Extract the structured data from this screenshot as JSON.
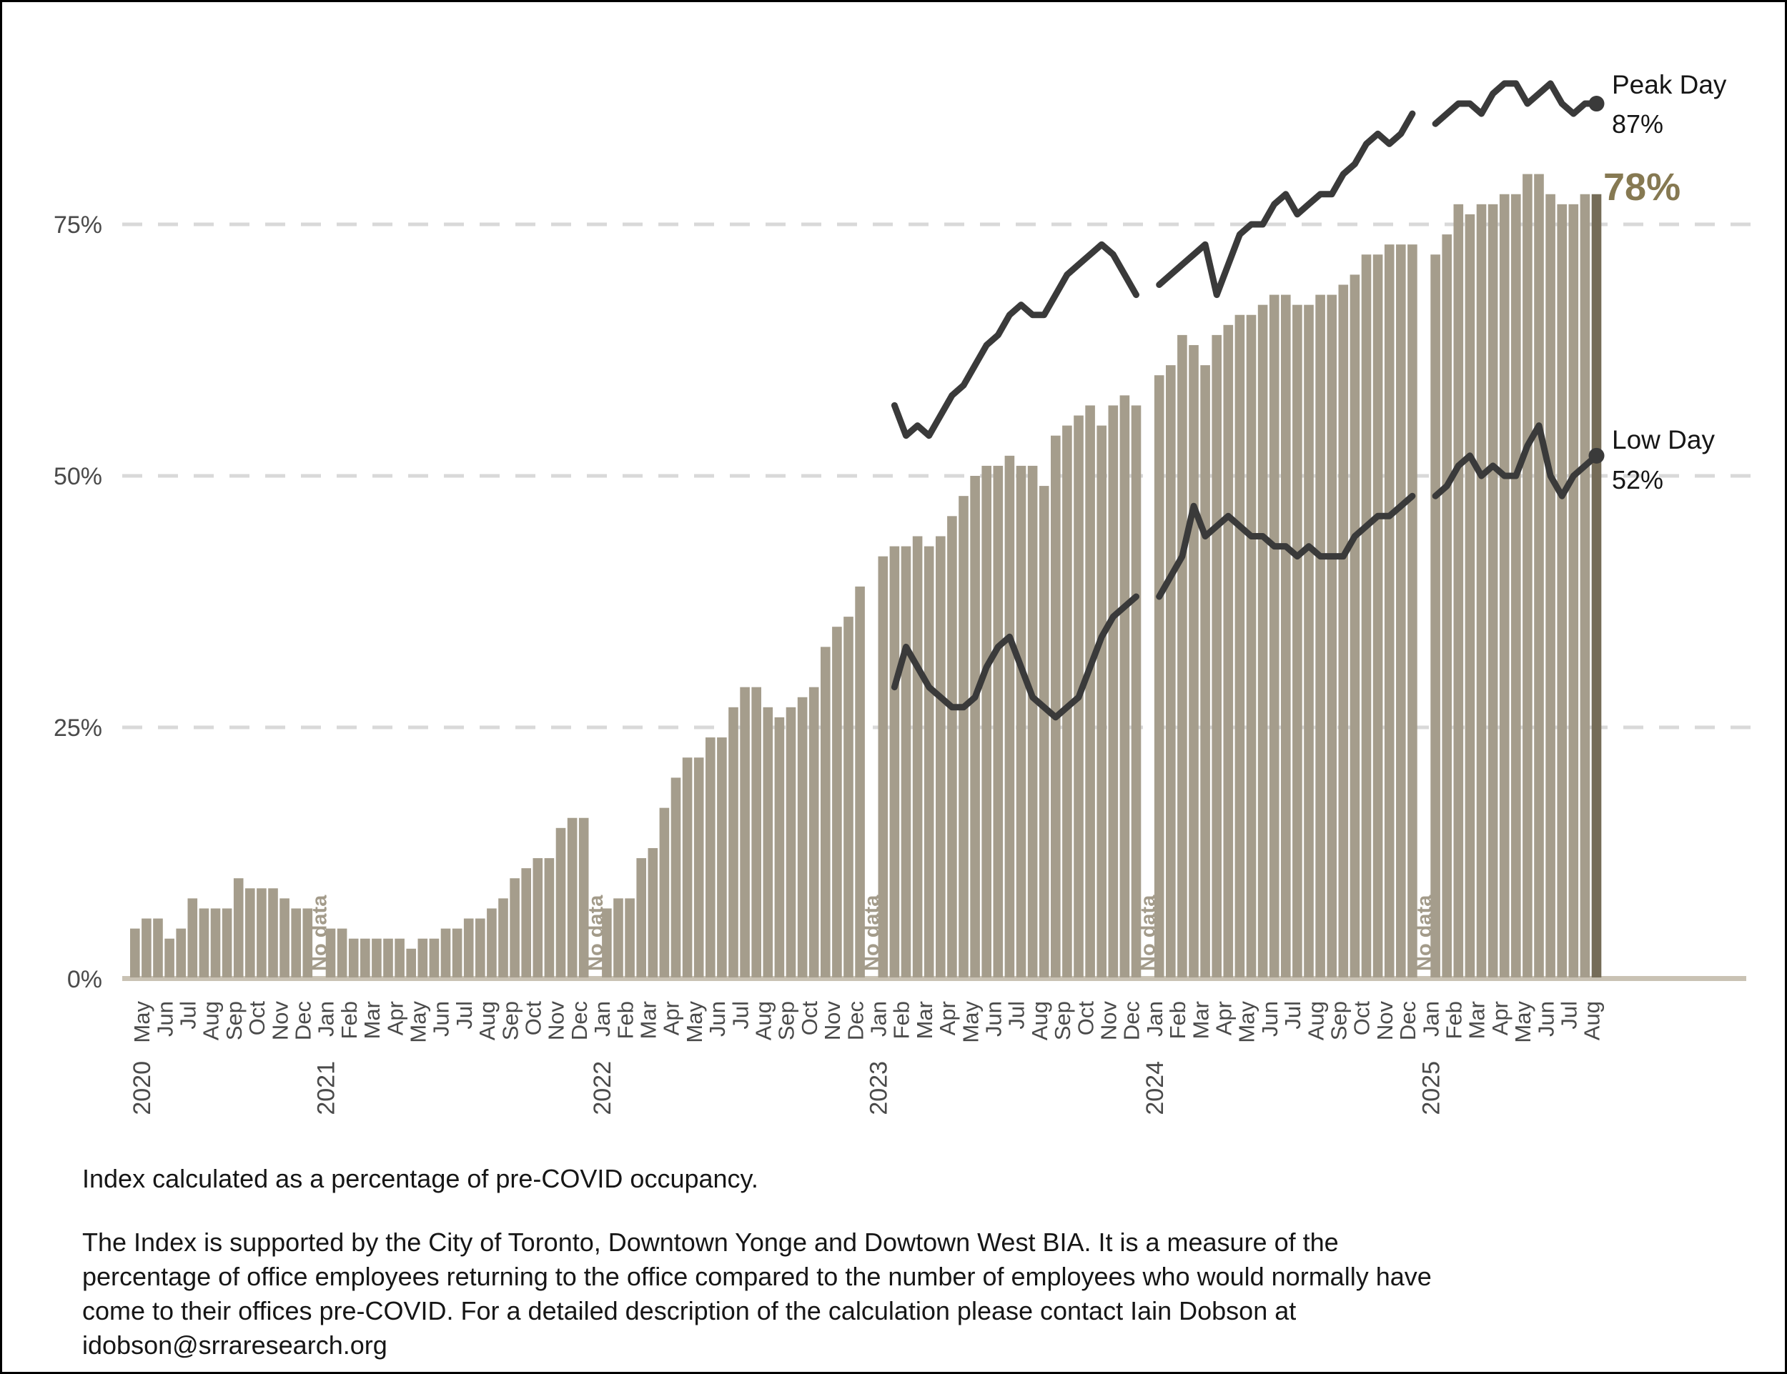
{
  "colors": {
    "bar": "#a59d8c",
    "bar_final": "#756c58",
    "line": "#3a3a3a",
    "grid": "#d9d9d9",
    "axis_text": "#4a4a4a",
    "no_data_text": "#a39b8a",
    "baseline": "#c9c2b4",
    "accent": "#867952",
    "background": "#ffffff"
  },
  "y_axis": {
    "ticks": [
      {
        "label": "0%",
        "value": 0
      },
      {
        "label": "25%",
        "value": 25
      },
      {
        "label": "50%",
        "value": 50
      },
      {
        "label": "75%",
        "value": 75
      }
    ]
  },
  "x_axis": {
    "months": [
      "May",
      "Jun",
      "Jul",
      "Aug",
      "Sep",
      "Oct",
      "Nov",
      "Dec",
      "Jan",
      "Feb",
      "Mar",
      "Apr",
      "May",
      "Jun",
      "Jul",
      "Aug",
      "Sep",
      "Oct",
      "Nov",
      "Dec",
      "Jan",
      "Feb",
      "Mar",
      "Apr",
      "May",
      "Jun",
      "Jul",
      "Aug",
      "Sep",
      "Oct",
      "Nov",
      "Dec",
      "Jan",
      "Feb",
      "Mar",
      "Apr",
      "May",
      "Jun",
      "Jul",
      "Aug",
      "Sep",
      "Oct",
      "Nov",
      "Dec",
      "Jan",
      "Feb",
      "Mar",
      "Apr",
      "May",
      "Jun",
      "Jul",
      "Aug",
      "Sep",
      "Oct",
      "Nov",
      "Dec",
      "Jan",
      "Feb",
      "Mar",
      "Apr",
      "May",
      "Jun",
      "Jul",
      "Aug"
    ],
    "years": [
      {
        "label": "2020",
        "month_index": 0
      },
      {
        "label": "2021",
        "month_index": 8
      },
      {
        "label": "2022",
        "month_index": 20
      },
      {
        "label": "2023",
        "month_index": 32
      },
      {
        "label": "2024",
        "month_index": 44
      },
      {
        "label": "2025",
        "month_index": 56
      }
    ]
  },
  "no_data": {
    "label": "No data",
    "slots": [
      16,
      40,
      64,
      88,
      112
    ]
  },
  "chart_data": {
    "type": "bar+line",
    "description": "Office occupancy index as percentage of pre-COVID occupancy, semi-monthly, May 2020 - Aug 2025",
    "ylim": [
      0,
      100
    ],
    "grid": "dashed horizontal at 25/50/75",
    "slot_unit": "half-month, 2 per month, null = No data",
    "bars": {
      "values_percent": [
        5,
        6,
        6,
        4,
        5,
        8,
        7,
        7,
        7,
        10,
        9,
        9,
        9,
        8,
        7,
        7,
        null,
        5,
        5,
        4,
        4,
        4,
        4,
        4,
        3,
        4,
        4,
        5,
        5,
        6,
        6,
        7,
        8,
        10,
        11,
        12,
        12,
        15,
        16,
        16,
        null,
        7,
        8,
        8,
        12,
        13,
        17,
        20,
        22,
        22,
        24,
        24,
        27,
        29,
        29,
        27,
        26,
        27,
        28,
        29,
        33,
        35,
        36,
        39,
        null,
        42,
        43,
        43,
        44,
        43,
        44,
        46,
        48,
        50,
        51,
        51,
        52,
        51,
        51,
        49,
        54,
        55,
        56,
        57,
        55,
        57,
        58,
        57,
        null,
        60,
        61,
        64,
        63,
        61,
        64,
        65,
        66,
        66,
        67,
        68,
        68,
        67,
        67,
        68,
        68,
        69,
        70,
        72,
        72,
        73,
        73,
        73,
        null,
        72,
        74,
        77,
        76,
        77,
        77,
        78,
        78,
        80,
        80,
        78,
        77,
        77,
        78,
        78
      ],
      "final_value": 78
    },
    "series": [
      {
        "name": "Peak Day",
        "end_value": 87,
        "segments": [
          {
            "start_slot": 66,
            "values": [
              57,
              54,
              55,
              54,
              56,
              58,
              59,
              61,
              63,
              64,
              66,
              67,
              66,
              66,
              68,
              70,
              71,
              72,
              73,
              72,
              70,
              68
            ]
          },
          {
            "start_slot": 89,
            "values": [
              69,
              70,
              71,
              72,
              73,
              68,
              71,
              74,
              75,
              75,
              77,
              78,
              76,
              77,
              78,
              78,
              80,
              81,
              83,
              84,
              83,
              84,
              86
            ]
          },
          {
            "start_slot": 113,
            "values": [
              85,
              86,
              87,
              87,
              86,
              88,
              89,
              89,
              87,
              88,
              89,
              87,
              86,
              87,
              87
            ]
          }
        ]
      },
      {
        "name": "Low Day",
        "end_value": 52,
        "segments": [
          {
            "start_slot": 66,
            "values": [
              29,
              33,
              31,
              29,
              28,
              27,
              27,
              28,
              31,
              33,
              34,
              31,
              28,
              27,
              26,
              27,
              28,
              31,
              34,
              36,
              37,
              38
            ]
          },
          {
            "start_slot": 89,
            "values": [
              38,
              40,
              42,
              47,
              44,
              45,
              46,
              45,
              44,
              44,
              43,
              43,
              42,
              43,
              42,
              42,
              42,
              44,
              45,
              46,
              46,
              47,
              48
            ]
          },
          {
            "start_slot": 113,
            "values": [
              48,
              49,
              51,
              52,
              50,
              51,
              50,
              50,
              53,
              55,
              50,
              48,
              50,
              51,
              52
            ]
          }
        ]
      }
    ]
  },
  "annotations": {
    "peak_label": "Peak Day",
    "peak_value": "87%",
    "current_value": "78%",
    "low_label": "Low Day",
    "low_value": "52%"
  },
  "footnotes": {
    "line1": "Index calculated as a percentage of pre-COVID occupancy.",
    "paragraph": "The Index is supported by the City of Toronto, Downtown Yonge and Dowtown West BIA. It is a measure of the percentage of office employees returning to the office compared to the number of employees who would normally have come to their offices pre-COVID. For a detailed description of the calculation please contact Iain Dobson at idobson@srraresearch.org"
  }
}
